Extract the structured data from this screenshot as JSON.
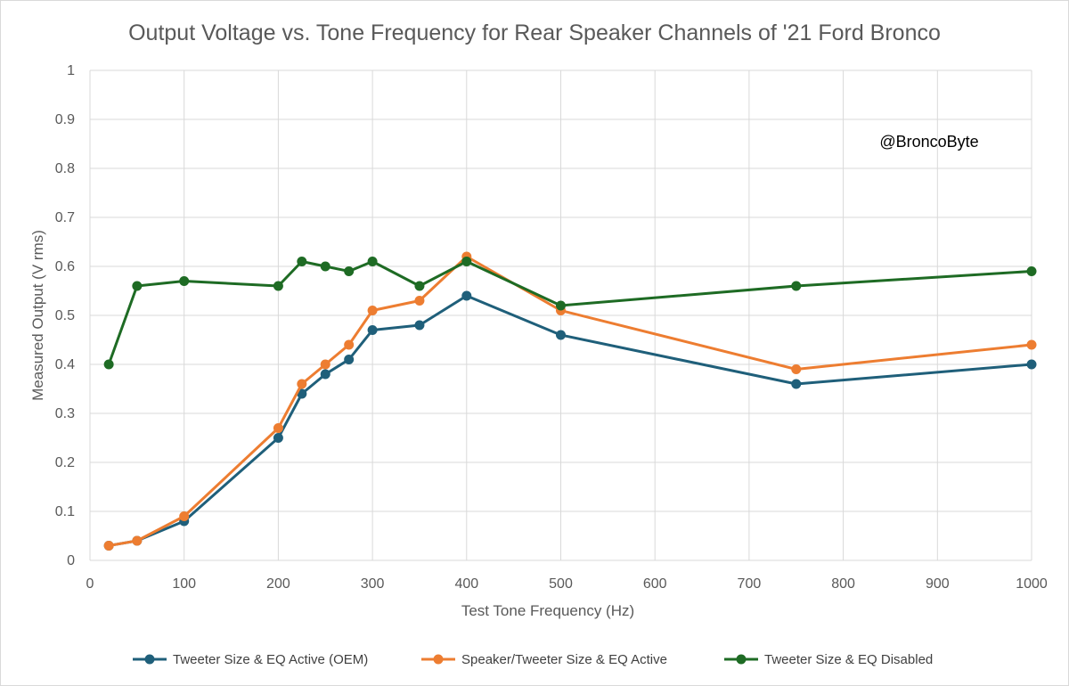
{
  "chart_data": {
    "type": "line",
    "title": "Output Voltage vs. Tone Frequency for Rear Speaker Channels of '21 Ford Bronco",
    "xlabel": "Test Tone Frequency (Hz)",
    "ylabel": "Measured Output (V rms)",
    "xlim": [
      0,
      1000
    ],
    "ylim": [
      0,
      1
    ],
    "x_ticks": [
      "0",
      "100",
      "200",
      "300",
      "400",
      "500",
      "600",
      "700",
      "800",
      "900",
      "1000"
    ],
    "y_ticks": [
      "0",
      "0.1",
      "0.2",
      "0.3",
      "0.4",
      "0.5",
      "0.6",
      "0.7",
      "0.8",
      "0.9",
      "1"
    ],
    "grid": true,
    "legend_position": "bottom",
    "annotation": "@BroncoByte",
    "series": [
      {
        "name": "Tweeter Size & EQ Active (OEM)",
        "color": "#1f5f7a",
        "x": [
          20,
          50,
          100,
          200,
          225,
          250,
          275,
          300,
          350,
          400,
          500,
          750,
          1000
        ],
        "y": [
          0.03,
          0.04,
          0.08,
          0.25,
          0.34,
          0.38,
          0.41,
          0.47,
          0.48,
          0.54,
          0.46,
          0.36,
          0.4
        ]
      },
      {
        "name": "Speaker/Tweeter Size & EQ Active",
        "color": "#ed7d31",
        "x": [
          20,
          50,
          100,
          200,
          225,
          250,
          275,
          300,
          350,
          400,
          500,
          750,
          1000
        ],
        "y": [
          0.03,
          0.04,
          0.09,
          0.27,
          0.36,
          0.4,
          0.44,
          0.51,
          0.53,
          0.62,
          0.51,
          0.39,
          0.44
        ]
      },
      {
        "name": "Tweeter Size & EQ Disabled",
        "color": "#1e6b24",
        "x": [
          20,
          50,
          100,
          200,
          225,
          250,
          275,
          300,
          350,
          400,
          500,
          750,
          1000
        ],
        "y": [
          0.4,
          0.56,
          0.57,
          0.56,
          0.61,
          0.6,
          0.59,
          0.61,
          0.56,
          0.61,
          0.52,
          0.56,
          0.59
        ]
      }
    ]
  }
}
